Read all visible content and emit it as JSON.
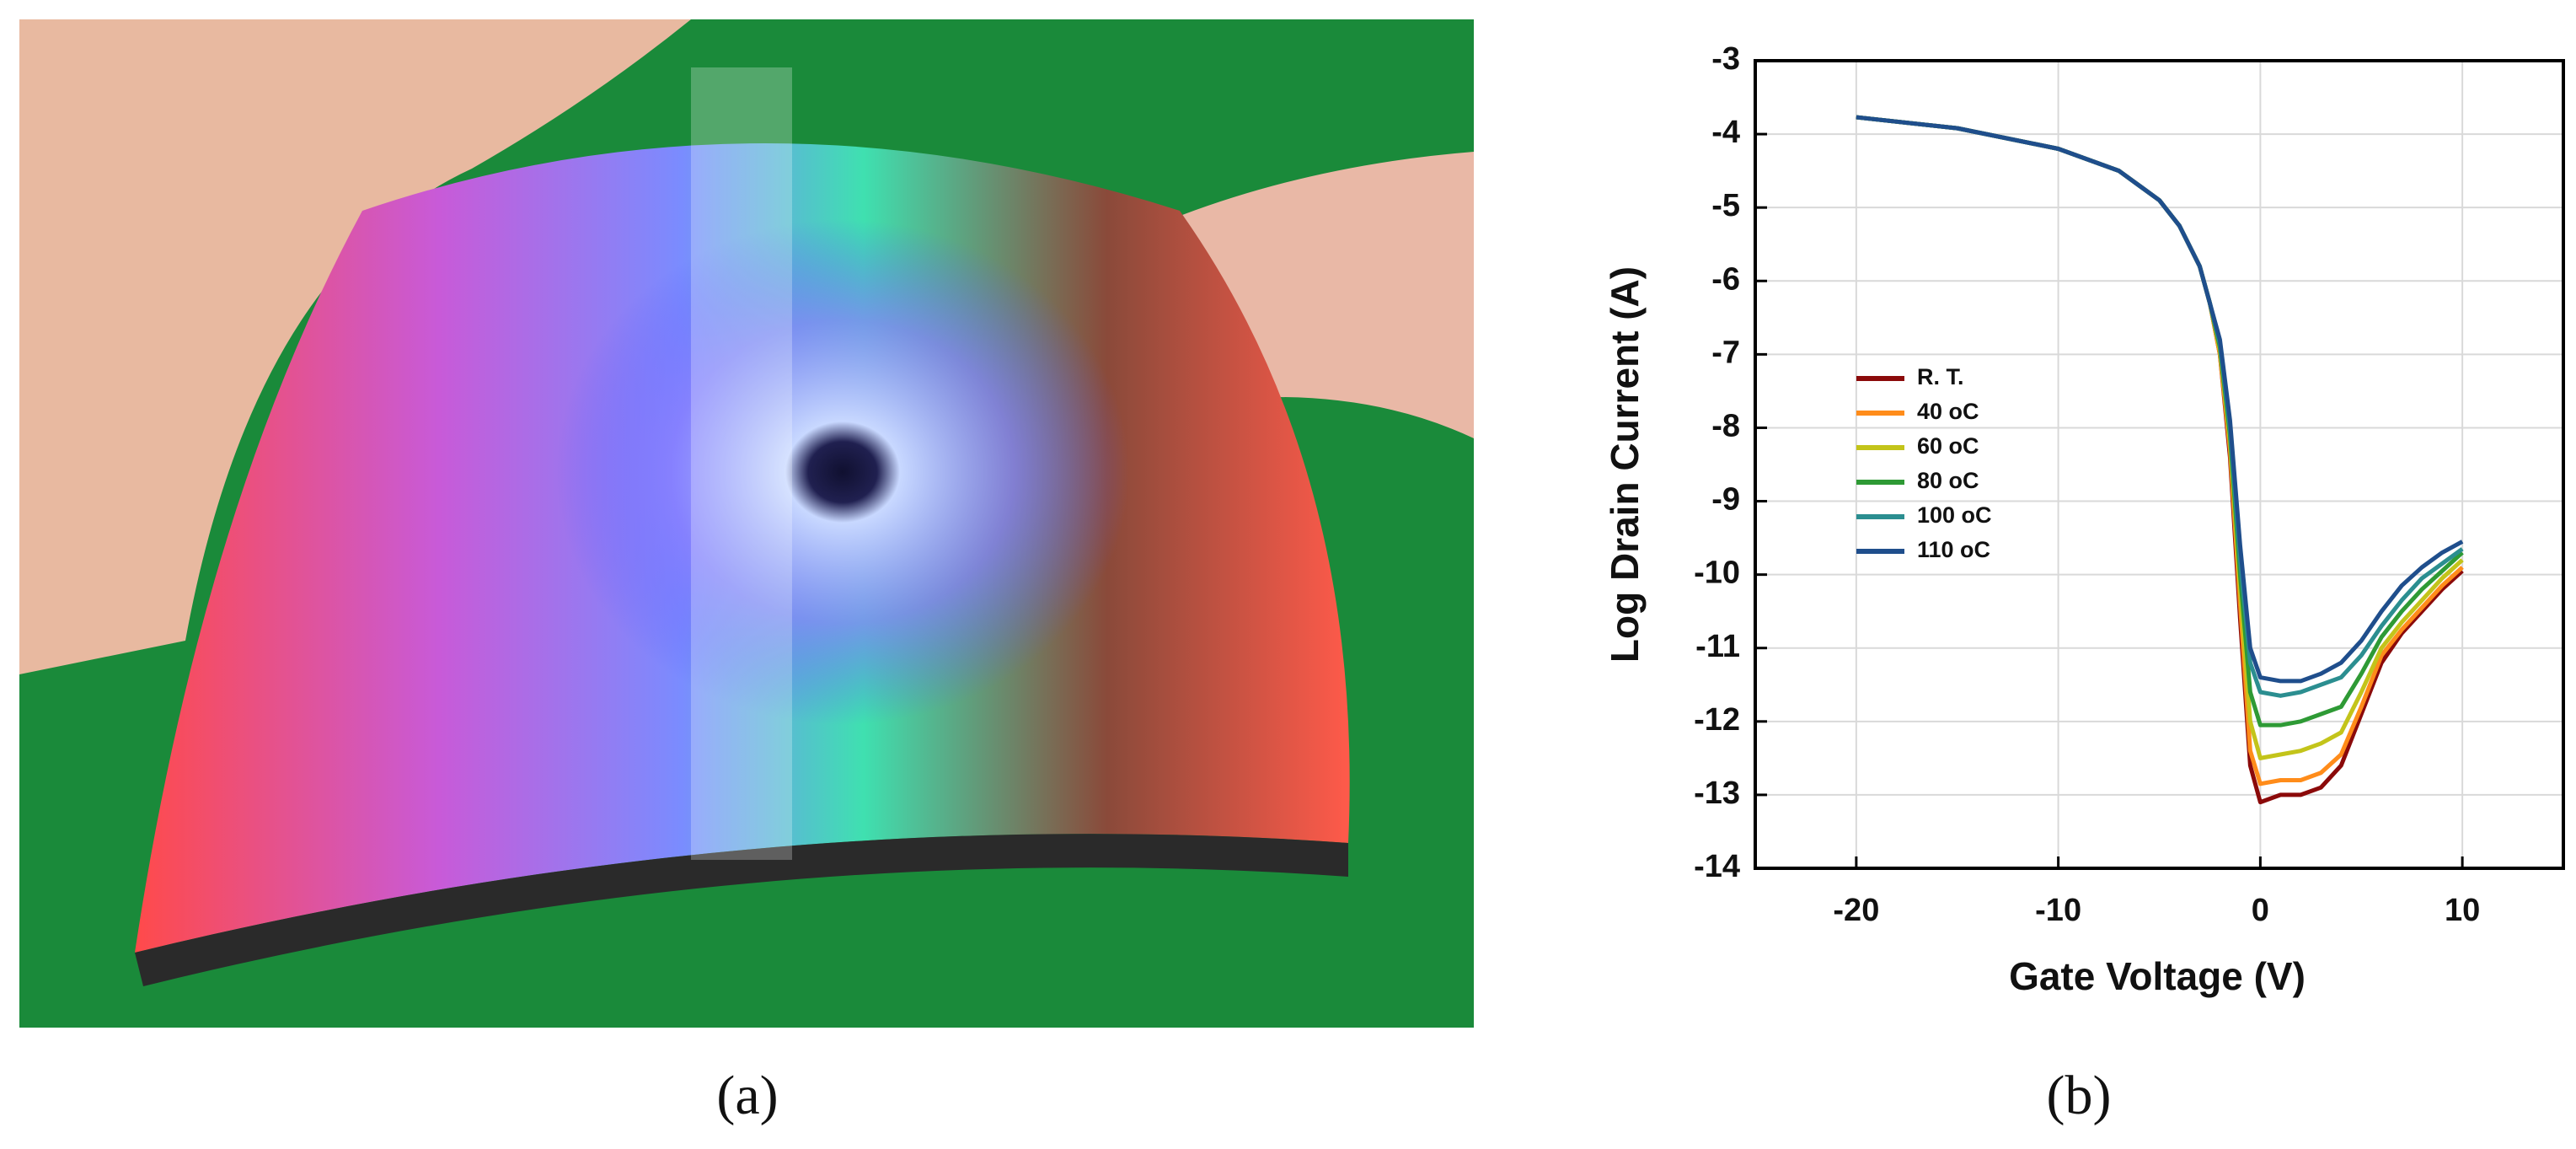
{
  "captions": [
    "(a)",
    "(b)"
  ],
  "chart_data": {
    "type": "line",
    "x_label": "Gate Voltage  (V)",
    "y_label": "Log Drain Current (A)",
    "x": [
      -20,
      -15,
      -10,
      -7,
      -5,
      -4,
      -3,
      -2.5,
      -2,
      -1.5,
      -1,
      -0.5,
      0,
      1,
      2,
      3,
      4,
      5,
      6,
      7,
      8,
      9,
      10
    ],
    "series": [
      {
        "name": "R. T.",
        "color": "#8b0a0a",
        "values": [
          -3.77,
          -3.92,
          -4.2,
          -4.5,
          -4.9,
          -5.25,
          -5.8,
          -6.3,
          -7.0,
          -8.4,
          -10.6,
          -12.6,
          -13.1,
          -13.0,
          -13.0,
          -12.9,
          -12.6,
          -11.9,
          -11.2,
          -10.8,
          -10.5,
          -10.2,
          -9.95
        ]
      },
      {
        "name": "40 oC",
        "color": "#ff8c1a",
        "values": [
          -3.77,
          -3.92,
          -4.2,
          -4.5,
          -4.9,
          -5.25,
          -5.8,
          -6.3,
          -7.0,
          -8.3,
          -10.4,
          -12.4,
          -12.85,
          -12.8,
          -12.8,
          -12.7,
          -12.45,
          -11.8,
          -11.1,
          -10.75,
          -10.45,
          -10.15,
          -9.9
        ]
      },
      {
        "name": "60 oC",
        "color": "#c3c41a",
        "values": [
          -3.77,
          -3.92,
          -4.2,
          -4.5,
          -4.9,
          -5.25,
          -5.8,
          -6.3,
          -6.95,
          -8.2,
          -10.2,
          -12.0,
          -12.5,
          -12.45,
          -12.4,
          -12.3,
          -12.15,
          -11.6,
          -11.0,
          -10.65,
          -10.35,
          -10.05,
          -9.8
        ]
      },
      {
        "name": "80 oC",
        "color": "#2e9a35",
        "values": [
          -3.77,
          -3.92,
          -4.2,
          -4.5,
          -4.9,
          -5.25,
          -5.8,
          -6.3,
          -6.9,
          -8.1,
          -10.0,
          -11.6,
          -12.05,
          -12.05,
          -12.0,
          -11.9,
          -11.8,
          -11.35,
          -10.85,
          -10.5,
          -10.2,
          -9.95,
          -9.7
        ]
      },
      {
        "name": "100 oC",
        "color": "#2b8e90",
        "values": [
          -3.77,
          -3.92,
          -4.2,
          -4.5,
          -4.9,
          -5.25,
          -5.8,
          -6.3,
          -6.85,
          -8.0,
          -9.8,
          -11.2,
          -11.6,
          -11.65,
          -11.6,
          -11.5,
          -11.4,
          -11.1,
          -10.7,
          -10.35,
          -10.05,
          -9.85,
          -9.65
        ]
      },
      {
        "name": "110 oC",
        "color": "#1f4e8c",
        "values": [
          -3.77,
          -3.92,
          -4.2,
          -4.5,
          -4.9,
          -5.25,
          -5.8,
          -6.3,
          -6.8,
          -7.9,
          -9.6,
          -11.0,
          -11.4,
          -11.45,
          -11.45,
          -11.35,
          -11.2,
          -10.9,
          -10.5,
          -10.15,
          -9.9,
          -9.7,
          -9.55
        ]
      }
    ],
    "xlim": [
      -25,
      15
    ],
    "xticks": [
      -20,
      -10,
      0,
      10
    ],
    "ylim": [
      -14,
      -3
    ],
    "yticks": [
      -14,
      -13,
      -12,
      -11,
      -10,
      -9,
      -8,
      -7,
      -6,
      -5,
      -4,
      -3
    ],
    "grid": true
  }
}
